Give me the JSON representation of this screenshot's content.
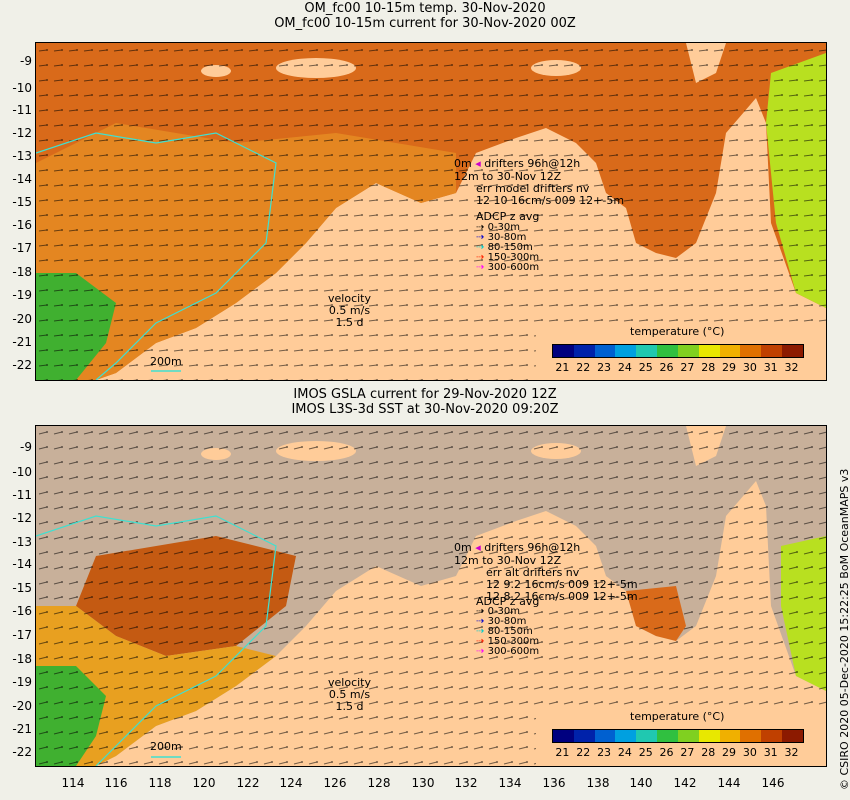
{
  "top": {
    "title_line1": "OM_fc00 10-15m temp. 30-Nov-2020",
    "title_line2": "OM_fc00 10-15m current for 30-Nov-2020 00Z",
    "drift_l1": "0m",
    "drift_l1b": "drifters 96h@12h",
    "drift_l2": "12m",
    "drift_l2b": "to 30-Nov 12Z",
    "drift_l3": "err model drifters nv",
    "drift_l4": "12 10 16cm/s 009 12+-5m"
  },
  "bottom": {
    "title_line1": "IMOS GSLA current for 29-Nov-2020 12Z",
    "title_line2": "IMOS L3S-3d SST at 30-Nov-2020 09:20Z",
    "drift_l1": "0m",
    "drift_l1b": "drifters 96h@12h",
    "drift_l2": "12m",
    "drift_l2b": "to 30-Nov 12Z",
    "drift_l3": "err alt drifters nv",
    "drift_l4": "12 9.2 16cm/s 009 12+-5m",
    "drift_l5": "12 8.2 16cm/s 009 12+-5m"
  },
  "adcp": {
    "title": "ADCP z avg",
    "items": [
      {
        "label": "0-30m",
        "color": "#000000"
      },
      {
        "label": "30-80m",
        "color": "#0000cc"
      },
      {
        "label": "80-150m",
        "color": "#00cccc"
      },
      {
        "label": "150-300m",
        "color": "#ff2200"
      },
      {
        "label": "300-600m",
        "color": "#ff00ff"
      }
    ]
  },
  "velocity": {
    "title": "velocity",
    "speed": "0.5 m/s",
    "duration": "1.5 d"
  },
  "contour_label": "200m",
  "colorbar": {
    "title": "temperature (°C)",
    "ticks": [
      "21",
      "22",
      "23",
      "24",
      "25",
      "26",
      "27",
      "28",
      "29",
      "30",
      "31",
      "32"
    ],
    "colors": [
      "#00007f",
      "#0022aa",
      "#0060d0",
      "#00a0e0",
      "#20c8b0",
      "#30c040",
      "#80d020",
      "#e8e800",
      "#f0b000",
      "#e07000",
      "#c04000",
      "#8c1a00"
    ]
  },
  "y_labels": [
    "-9",
    "-10",
    "-11",
    "-12",
    "-13",
    "-14",
    "-15",
    "-16",
    "-17",
    "-18",
    "-19",
    "-20",
    "-21",
    "-22"
  ],
  "x_labels": [
    "114",
    "116",
    "118",
    "120",
    "122",
    "124",
    "126",
    "128",
    "130",
    "132",
    "134",
    "136",
    "138",
    "140",
    "142",
    "144",
    "146"
  ],
  "credit": "© CSIRO 2020  05-Dec-2020 15:22:25 BoM OceanMAPS v3",
  "colors": {
    "land": "#ffcc99",
    "ocean_warm": "#d96a1a",
    "ocean_mid": "#f0a020",
    "ocean_cool": "#40b030",
    "missing": "#c8b09a"
  }
}
